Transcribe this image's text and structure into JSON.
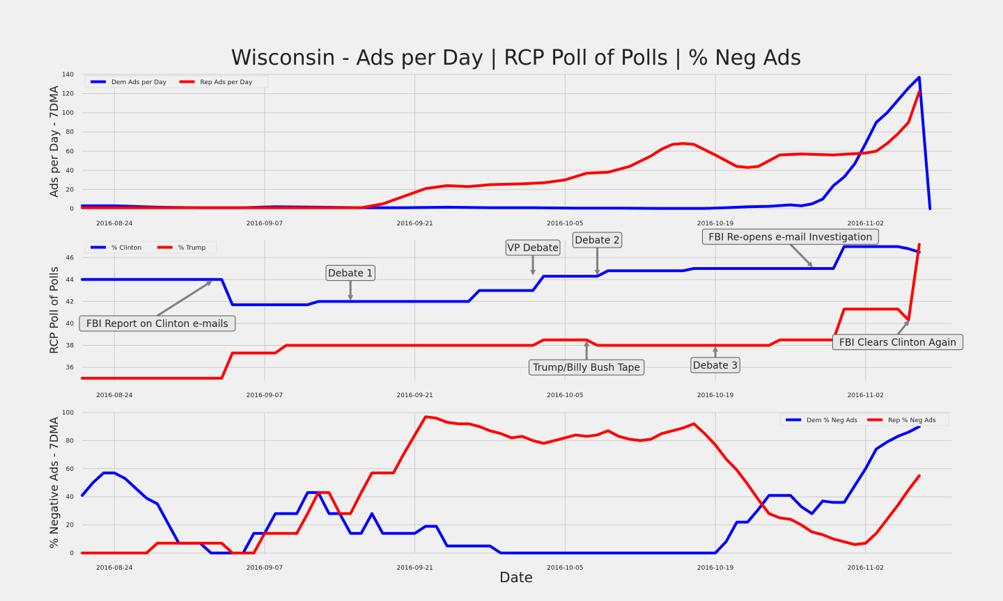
{
  "title": "Wisconsin - Ads per Day | RCP Poll of Polls | % Neg Ads",
  "xlabel": "Date",
  "colors": {
    "dem": "#0000ff",
    "rep": "#ff0000",
    "grid": "#cbcbcb",
    "arrow": "#808080"
  },
  "date_ticks": [
    "2016-08-24",
    "2016-09-07",
    "2016-09-21",
    "2016-10-05",
    "2016-10-19",
    "2016-11-02"
  ],
  "chart_data": [
    {
      "type": "line",
      "ylabel": "Ads per Day - 7DMA",
      "ylim": [
        0,
        140
      ],
      "yticks": [
        0,
        20,
        40,
        60,
        80,
        100,
        120,
        140
      ],
      "grid": true,
      "legend_placement": "top-left",
      "series": [
        {
          "name": "Dem Ads per Day",
          "color": "dem",
          "x": [
            "2016-08-21",
            "2016-08-24",
            "2016-08-28",
            "2016-09-01",
            "2016-09-05",
            "2016-09-08",
            "2016-09-12",
            "2016-09-16",
            "2016-09-20",
            "2016-09-24",
            "2016-09-28",
            "2016-10-02",
            "2016-10-06",
            "2016-10-10",
            "2016-10-14",
            "2016-10-18",
            "2016-10-20",
            "2016-10-22",
            "2016-10-24",
            "2016-10-26",
            "2016-10-27",
            "2016-10-28",
            "2016-10-29",
            "2016-10-30",
            "2016-10-31",
            "2016-11-01",
            "2016-11-02",
            "2016-11-03",
            "2016-11-04",
            "2016-11-05",
            "2016-11-06",
            "2016-11-07",
            "2016-11-08"
          ],
          "values": [
            3,
            3,
            1.5,
            1,
            1,
            2,
            1.5,
            1,
            1,
            1.5,
            1,
            1,
            0.5,
            0.5,
            0.3,
            0.3,
            1,
            2,
            2.5,
            4,
            3,
            5,
            10,
            24,
            33,
            47,
            68,
            90,
            100,
            113,
            126,
            137,
            0
          ]
        },
        {
          "name": "Rep Ads per Day",
          "color": "rep",
          "x": [
            "2016-08-21",
            "2016-08-28",
            "2016-09-04",
            "2016-09-10",
            "2016-09-16",
            "2016-09-18",
            "2016-09-20",
            "2016-09-22",
            "2016-09-24",
            "2016-09-26",
            "2016-09-28",
            "2016-10-01",
            "2016-10-03",
            "2016-10-05",
            "2016-10-07",
            "2016-10-09",
            "2016-10-11",
            "2016-10-13",
            "2016-10-14",
            "2016-10-15",
            "2016-10-16",
            "2016-10-17",
            "2016-10-19",
            "2016-10-21",
            "2016-10-22",
            "2016-10-23",
            "2016-10-25",
            "2016-10-27",
            "2016-10-30",
            "2016-11-02",
            "2016-11-03",
            "2016-11-04",
            "2016-11-05",
            "2016-11-06",
            "2016-11-07"
          ],
          "values": [
            1,
            1,
            1,
            1,
            1,
            5,
            13,
            21,
            24,
            23,
            25,
            26,
            27,
            30,
            37,
            38,
            44,
            55,
            62,
            67,
            68,
            67,
            56,
            44,
            43,
            44,
            56,
            57,
            56,
            58,
            60,
            68,
            78,
            90,
            122
          ]
        }
      ]
    },
    {
      "type": "line",
      "ylabel": "RCP Poll of Polls",
      "ylim": [
        34.8,
        47.6
      ],
      "yticks": [
        36,
        38,
        40,
        42,
        44,
        46
      ],
      "grid": true,
      "legend_placement": "top-left",
      "series": [
        {
          "name": "% Clinton",
          "color": "dem",
          "x": [
            "2016-08-21",
            "2016-09-03",
            "2016-09-04",
            "2016-09-11",
            "2016-09-12",
            "2016-09-26",
            "2016-09-27",
            "2016-10-02",
            "2016-10-03",
            "2016-10-08",
            "2016-10-09",
            "2016-10-16",
            "2016-10-17",
            "2016-10-30",
            "2016-10-31",
            "2016-11-05",
            "2016-11-06",
            "2016-11-07"
          ],
          "values": [
            44,
            44,
            41.7,
            41.7,
            42,
            42,
            43,
            43,
            44.3,
            44.3,
            44.8,
            44.8,
            45,
            45,
            47,
            47,
            46.8,
            46.5
          ]
        },
        {
          "name": "% Trump",
          "color": "rep",
          "x": [
            "2016-08-21",
            "2016-09-03",
            "2016-09-04",
            "2016-09-08",
            "2016-09-09",
            "2016-10-02",
            "2016-10-03",
            "2016-10-07",
            "2016-10-08",
            "2016-10-24",
            "2016-10-25",
            "2016-10-30",
            "2016-10-31",
            "2016-11-05",
            "2016-11-06",
            "2016-11-07"
          ],
          "values": [
            35,
            35,
            37.3,
            37.3,
            38,
            38,
            38.5,
            38.5,
            38,
            38,
            38.5,
            38.5,
            41.3,
            41.3,
            40.3,
            47.2
          ]
        }
      ],
      "annotations": [
        {
          "text": "FBI Report on Clinton e-mails",
          "x": "2016-08-28",
          "y": 40.0,
          "target_x": "2016-09-02",
          "target_y": 43.8
        },
        {
          "text": "Debate 1",
          "x": "2016-09-15",
          "y": 44.6,
          "target_x": "2016-09-15",
          "target_y": 42.2
        },
        {
          "text": "VP Debate",
          "x": "2016-10-02",
          "y": 46.9,
          "target_x": "2016-10-02",
          "target_y": 44.5
        },
        {
          "text": "Debate 2",
          "x": "2016-10-08",
          "y": 47.6,
          "target_x": "2016-10-08",
          "target_y": 44.5
        },
        {
          "text": "FBI Re-opens e-mail Investigation",
          "x": "2016-10-26",
          "y": 47.9,
          "target_x": "2016-10-28",
          "target_y": 45.2
        },
        {
          "text": "Trump/Billy Bush Tape",
          "x": "2016-10-07",
          "y": 36.0,
          "target_x": "2016-10-07",
          "target_y": 38.3
        },
        {
          "text": "Debate 3",
          "x": "2016-10-19",
          "y": 36.2,
          "target_x": "2016-10-19",
          "target_y": 37.8
        },
        {
          "text": "FBI Clears Clinton Again",
          "x": "2016-11-05",
          "y": 38.3,
          "target_x": "2016-11-06",
          "target_y": 40.2
        }
      ]
    },
    {
      "type": "line",
      "ylabel": "% Negative Ads - 7DMA",
      "ylim": [
        0,
        100
      ],
      "yticks": [
        0,
        20,
        40,
        60,
        80,
        100
      ],
      "grid": true,
      "legend_placement": "top-right",
      "series": [
        {
          "name": "Dem % Neg Ads",
          "color": "dem",
          "x": [
            "2016-08-21",
            "2016-08-22",
            "2016-08-23",
            "2016-08-24",
            "2016-08-25",
            "2016-08-26",
            "2016-08-27",
            "2016-08-28",
            "2016-08-30",
            "2016-08-31",
            "2016-09-01",
            "2016-09-02",
            "2016-09-03",
            "2016-09-04",
            "2016-09-05",
            "2016-09-06",
            "2016-09-07",
            "2016-09-08",
            "2016-09-09",
            "2016-09-10",
            "2016-09-11",
            "2016-09-12",
            "2016-09-13",
            "2016-09-14",
            "2016-09-15",
            "2016-09-16",
            "2016-09-17",
            "2016-09-18",
            "2016-09-19",
            "2016-09-20",
            "2016-09-21",
            "2016-09-22",
            "2016-09-23",
            "2016-09-24",
            "2016-09-25",
            "2016-09-26",
            "2016-09-27",
            "2016-09-28",
            "2016-09-29",
            "2016-10-05",
            "2016-10-19",
            "2016-10-20",
            "2016-10-21",
            "2016-10-22",
            "2016-10-23",
            "2016-10-24",
            "2016-10-25",
            "2016-10-26",
            "2016-10-27",
            "2016-10-28",
            "2016-10-29",
            "2016-10-30",
            "2016-10-31",
            "2016-11-01",
            "2016-11-02",
            "2016-11-03",
            "2016-11-04",
            "2016-11-05",
            "2016-11-06",
            "2016-11-07"
          ],
          "values": [
            41,
            50,
            57,
            57,
            53,
            46,
            39,
            35,
            7,
            7,
            7,
            0,
            0,
            0,
            0,
            14,
            14,
            28,
            28,
            28,
            43,
            43,
            28,
            28,
            14,
            14,
            28,
            14,
            14,
            14,
            14,
            19,
            19,
            5,
            5,
            5,
            5,
            5,
            0,
            0,
            0,
            8,
            22,
            22,
            31,
            41,
            41,
            41,
            33,
            28,
            37,
            36,
            36,
            48,
            60,
            74,
            79,
            83,
            86,
            90
          ]
        },
        {
          "name": "Rep % Neg Ads",
          "color": "rep",
          "x": [
            "2016-08-21",
            "2016-08-27",
            "2016-08-28",
            "2016-09-03",
            "2016-09-04",
            "2016-09-05",
            "2016-09-06",
            "2016-09-07",
            "2016-09-10",
            "2016-09-11",
            "2016-09-12",
            "2016-09-13",
            "2016-09-14",
            "2016-09-15",
            "2016-09-16",
            "2016-09-17",
            "2016-09-18",
            "2016-09-19",
            "2016-09-20",
            "2016-09-21",
            "2016-09-22",
            "2016-09-23",
            "2016-09-24",
            "2016-09-25",
            "2016-09-26",
            "2016-09-27",
            "2016-09-28",
            "2016-09-29",
            "2016-09-30",
            "2016-10-01",
            "2016-10-02",
            "2016-10-03",
            "2016-10-04",
            "2016-10-05",
            "2016-10-06",
            "2016-10-07",
            "2016-10-08",
            "2016-10-09",
            "2016-10-10",
            "2016-10-11",
            "2016-10-12",
            "2016-10-13",
            "2016-10-14",
            "2016-10-15",
            "2016-10-16",
            "2016-10-17",
            "2016-10-18",
            "2016-10-19",
            "2016-10-20",
            "2016-10-21",
            "2016-10-22",
            "2016-10-23",
            "2016-10-24",
            "2016-10-25",
            "2016-10-26",
            "2016-10-27",
            "2016-10-28",
            "2016-10-29",
            "2016-10-30",
            "2016-10-31",
            "2016-11-01",
            "2016-11-02",
            "2016-11-03",
            "2016-11-04",
            "2016-11-05",
            "2016-11-06",
            "2016-11-07"
          ],
          "values": [
            0,
            0,
            7,
            7,
            0,
            0,
            0,
            14,
            14,
            28,
            43,
            43,
            28,
            28,
            43,
            57,
            57,
            57,
            71,
            84,
            97,
            96,
            93,
            92,
            92,
            90,
            87,
            85,
            82,
            83,
            80,
            78,
            80,
            82,
            84,
            83,
            84,
            87,
            83,
            81,
            80,
            81,
            85,
            87,
            89,
            92,
            85,
            77,
            67,
            59,
            49,
            38,
            28,
            25,
            24,
            20,
            15,
            13,
            10,
            8,
            6,
            7,
            14,
            24,
            34,
            45,
            55
          ]
        }
      ]
    }
  ]
}
